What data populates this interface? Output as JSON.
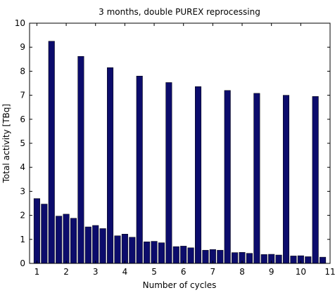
{
  "chart_data": {
    "type": "bar",
    "title": "3 months, double PUREX reprocessing",
    "xlabel": "Number of cycles",
    "ylabel": "Total activity [TBq]",
    "xlim": [
      0.75,
      11
    ],
    "ylim": [
      0,
      10
    ],
    "x_ticks": [
      "1",
      "2",
      "3",
      "4",
      "5",
      "6",
      "7",
      "8",
      "9",
      "10",
      "11"
    ],
    "y_ticks": [
      "0",
      "1",
      "2",
      "3",
      "4",
      "5",
      "6",
      "7",
      "8",
      "9",
      "10"
    ],
    "grid": false,
    "bar_color": "#0c0c6c",
    "x": [
      1,
      1.25,
      1.5,
      1.75,
      2,
      2.25,
      2.5,
      2.75,
      3,
      3.25,
      3.5,
      3.75,
      4,
      4.25,
      4.5,
      4.75,
      5,
      5.25,
      5.5,
      5.75,
      6,
      6.25,
      6.5,
      6.75,
      7,
      7.25,
      7.5,
      7.75,
      8,
      8.25,
      8.5,
      8.75,
      9,
      9.25,
      9.5,
      9.75,
      10,
      10.25,
      10.5,
      10.75
    ],
    "values": [
      2.7,
      2.47,
      9.25,
      1.97,
      2.05,
      1.88,
      8.62,
      1.52,
      1.58,
      1.45,
      8.15,
      1.15,
      1.22,
      1.09,
      7.8,
      0.9,
      0.92,
      0.86,
      7.53,
      0.7,
      0.72,
      0.65,
      7.36,
      0.55,
      0.58,
      0.55,
      7.2,
      0.45,
      0.46,
      0.42,
      7.08,
      0.37,
      0.38,
      0.35,
      7.0,
      0.31,
      0.32,
      0.28,
      6.95,
      0.26
    ]
  }
}
